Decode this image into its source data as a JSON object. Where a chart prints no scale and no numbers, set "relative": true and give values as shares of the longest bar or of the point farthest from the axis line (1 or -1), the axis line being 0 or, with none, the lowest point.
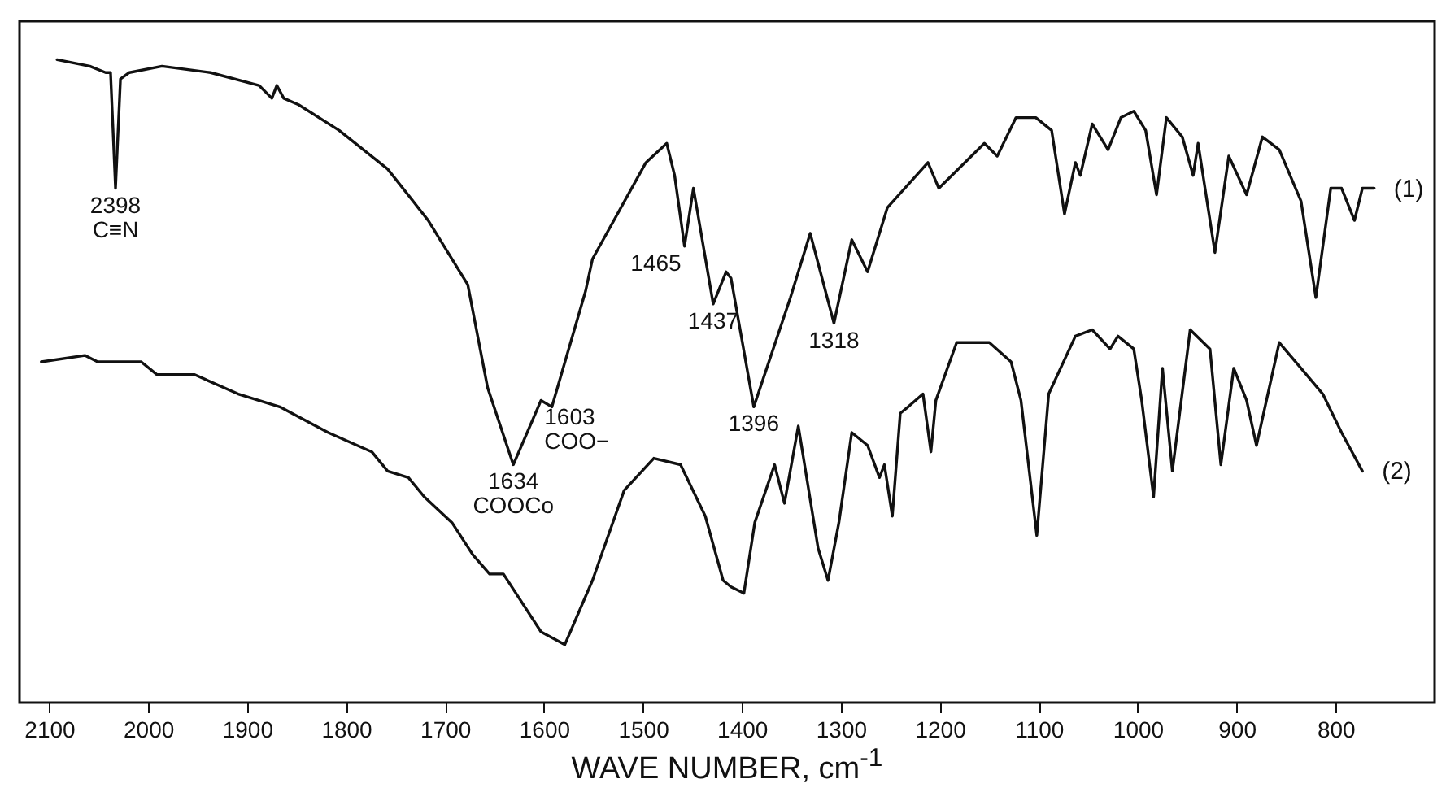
{
  "chart_data": {
    "type": "line",
    "relative": true,
    "xlabel": "WAVE NUMBER, cm$^{-1}$",
    "xlim": [
      2130,
      700
    ],
    "xticks": [
      2100,
      2000,
      1900,
      1800,
      1700,
      1600,
      1500,
      1400,
      1300,
      1200,
      1100,
      1000,
      900,
      800
    ],
    "grid": false,
    "legend": false,
    "marker": "none",
    "line_style": "solid",
    "series": [
      {
        "name": "(1)",
        "color": "#111111",
        "x": [
          2092,
          2059,
          2043,
          2038,
          2033,
          2028,
          2019,
          1986,
          1937,
          1888,
          1875,
          1870,
          1863,
          1848,
          1807,
          1758,
          1717,
          1677,
          1657,
          1631,
          1603,
          1592,
          1558,
          1551,
          1497,
          1476,
          1468,
          1458,
          1449,
          1429,
          1416,
          1411,
          1388,
          1351,
          1331,
          1307,
          1289,
          1273,
          1253,
          1212,
          1201,
          1155,
          1142,
          1123,
          1103,
          1087,
          1074,
          1063,
          1058,
          1046,
          1030,
          1017,
          1004,
          992,
          981,
          971,
          955,
          944,
          939,
          922,
          908,
          890,
          874,
          857,
          835,
          820,
          805,
          794,
          781,
          773,
          761
        ],
        "values": [
          1.0,
          0.99,
          0.98,
          0.98,
          0.8,
          0.97,
          0.98,
          0.99,
          0.98,
          0.96,
          0.94,
          0.96,
          0.94,
          0.93,
          0.89,
          0.83,
          0.75,
          0.65,
          0.49,
          0.37,
          0.47,
          0.46,
          0.64,
          0.69,
          0.84,
          0.87,
          0.82,
          0.71,
          0.8,
          0.62,
          0.67,
          0.66,
          0.46,
          0.63,
          0.73,
          0.59,
          0.72,
          0.67,
          0.77,
          0.84,
          0.8,
          0.87,
          0.85,
          0.91,
          0.91,
          0.89,
          0.76,
          0.84,
          0.82,
          0.9,
          0.86,
          0.91,
          0.92,
          0.89,
          0.79,
          0.91,
          0.88,
          0.82,
          0.87,
          0.7,
          0.85,
          0.79,
          0.88,
          0.86,
          0.78,
          0.63,
          0.8,
          0.8,
          0.75,
          0.8,
          0.8
        ]
      },
      {
        "name": "(2)",
        "color": "#111111",
        "x": [
          2108,
          2064,
          2051,
          2007,
          1991,
          1953,
          1909,
          1867,
          1818,
          1774,
          1758,
          1737,
          1721,
          1693,
          1672,
          1655,
          1641,
          1603,
          1579,
          1551,
          1519,
          1489,
          1462,
          1437,
          1419,
          1411,
          1398,
          1387,
          1367,
          1357,
          1343,
          1323,
          1313,
          1302,
          1289,
          1273,
          1261,
          1256,
          1248,
          1240,
          1232,
          1217,
          1209,
          1204,
          1183,
          1150,
          1128,
          1118,
          1102,
          1090,
          1063,
          1046,
          1028,
          1020,
          1004,
          996,
          984,
          975,
          965,
          947,
          927,
          916,
          903,
          890,
          880,
          857,
          835,
          813,
          794,
          773
        ],
        "values": [
          0.53,
          0.54,
          0.53,
          0.53,
          0.51,
          0.51,
          0.48,
          0.46,
          0.42,
          0.39,
          0.36,
          0.35,
          0.32,
          0.28,
          0.23,
          0.2,
          0.2,
          0.11,
          0.09,
          0.19,
          0.33,
          0.38,
          0.37,
          0.29,
          0.19,
          0.18,
          0.17,
          0.28,
          0.37,
          0.31,
          0.43,
          0.24,
          0.19,
          0.28,
          0.42,
          0.4,
          0.35,
          0.37,
          0.29,
          0.45,
          0.46,
          0.48,
          0.39,
          0.47,
          0.56,
          0.56,
          0.53,
          0.47,
          0.26,
          0.48,
          0.57,
          0.58,
          0.55,
          0.57,
          0.55,
          0.47,
          0.32,
          0.52,
          0.36,
          0.58,
          0.55,
          0.37,
          0.52,
          0.47,
          0.4,
          0.56,
          0.52,
          0.48,
          0.42,
          0.36
        ]
      }
    ],
    "annotations": [
      {
        "text": "2398\nC≡N",
        "x": 2033,
        "y": 0.8
      },
      {
        "text": "1634\nCOOCo",
        "x": 1631,
        "y": 0.37
      },
      {
        "text": "1603\nCOO−",
        "x": 1603,
        "y": 0.47
      },
      {
        "text": "1465",
        "x": 1458,
        "y": 0.71
      },
      {
        "text": "1437",
        "x": 1429,
        "y": 0.62
      },
      {
        "text": "1396",
        "x": 1388,
        "y": 0.46
      },
      {
        "text": "1318",
        "x": 1307,
        "y": 0.59
      }
    ]
  }
}
